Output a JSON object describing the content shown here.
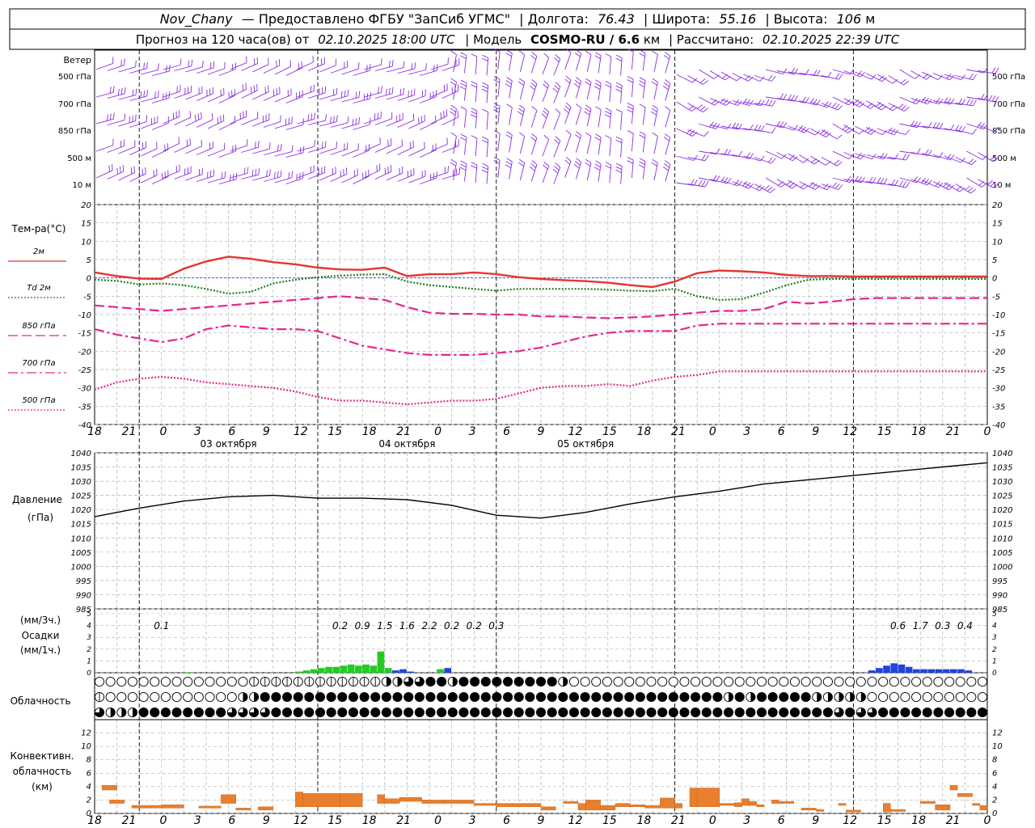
{
  "header": {
    "station": "Nov_Chany",
    "provider": "— Предоставлено ФГБУ \"ЗапСиб УГМС\"",
    "lon_label": "| Долгота:",
    "lon": "76.43",
    "lat_label": "| Широта:",
    "lat": "55.16",
    "alt_label": "| Высота:",
    "alt": "106",
    "alt_unit": "м",
    "forecast_label": "Прогноз на 120 часа(ов)  от",
    "forecast_start": "02.10.2025 18:00 UTC",
    "model_label": "| Модель",
    "model": "COSMO-RU / 6.6",
    "model_unit": "км",
    "computed_label": "| Рассчитано:",
    "computed": "02.10.2025 22:39 UTC"
  },
  "wind_panel": {
    "title": "Ветер",
    "levels": [
      "500 гПа",
      "700 гПа",
      "850 гПа",
      "500 м",
      "10  м"
    ],
    "levels_right": [
      "500 гПа",
      "700 гПа",
      "850 гПа",
      "500 м",
      "10  м"
    ],
    "color": "#8a2be2"
  },
  "time_axis": {
    "hour_labels": [
      "18",
      "21",
      "0",
      "3",
      "6",
      "9",
      "12",
      "15",
      "18",
      "21",
      "0",
      "3",
      "6",
      "9",
      "12",
      "15",
      "18",
      "21",
      "0",
      "3",
      "6",
      "9",
      "12",
      "15",
      "18",
      "21",
      "0"
    ],
    "day_labels": [
      "03 октября",
      "04 октября",
      "05 октября"
    ]
  },
  "chart_data": [
    {
      "type": "line",
      "name": "temperature",
      "title": "Тем-ра(°С)",
      "ylim": [
        -40,
        20
      ],
      "yticks": [
        "20",
        "15",
        "10",
        "5",
        "0",
        "-5",
        "-10",
        "-15",
        "-20",
        "-25",
        "-30",
        "-35",
        "-40"
      ],
      "x_hours": [
        0,
        3,
        6,
        9,
        12,
        15,
        18,
        21,
        24,
        27,
        30,
        33,
        36,
        39,
        42,
        45,
        48,
        51,
        54,
        57,
        60,
        63,
        66,
        69,
        72,
        75,
        78,
        81,
        84,
        87,
        90,
        93,
        96,
        99,
        102,
        105,
        108,
        111,
        114,
        117,
        120
      ],
      "series": [
        {
          "name": "2м",
          "color": "#e8342f",
          "style": "solid",
          "values": [
            1.5,
            0.5,
            -0.2,
            -0.3,
            2.5,
            4.5,
            5.8,
            5.2,
            4.3,
            3.7,
            2.8,
            2.3,
            2.2,
            2.8,
            0.5,
            1.0,
            1.0,
            1.5,
            1.0,
            0.2,
            -0.3,
            -0.6,
            -0.9,
            -1.3,
            -2.0,
            -2.5,
            -1.0,
            1.3,
            2.0,
            1.8,
            1.5,
            0.8,
            0.5,
            0.5,
            0.4,
            0.4,
            0.4,
            0.4,
            0.4,
            0.4,
            0.4
          ]
        },
        {
          "name": "Td  2м",
          "color": "#1d7f1d",
          "style": "dotted",
          "values": [
            -0.5,
            -0.8,
            -1.8,
            -1.5,
            -2.0,
            -3.0,
            -4.3,
            -3.8,
            -1.5,
            -0.5,
            0.2,
            0.6,
            0.9,
            1.0,
            -1.0,
            -2.0,
            -2.5,
            -3.0,
            -3.5,
            -3.0,
            -3.0,
            -3.0,
            -3.0,
            -3.2,
            -3.5,
            -3.6,
            -3.0,
            -5.0,
            -6.0,
            -5.8,
            -4.0,
            -2.0,
            -0.5,
            -0.3,
            -0.3,
            -0.3,
            -0.3,
            -0.3,
            -0.3,
            -0.3,
            -0.3
          ]
        },
        {
          "name": "850 гПа",
          "color": "#e6268a",
          "style": "dash",
          "values": [
            -7.5,
            -8.0,
            -8.5,
            -9.0,
            -8.5,
            -8.0,
            -7.5,
            -7.0,
            -6.5,
            -6.0,
            -5.5,
            -5.0,
            -5.5,
            -6.0,
            -8.0,
            -9.5,
            -9.8,
            -9.8,
            -10.0,
            -10.0,
            -10.5,
            -10.5,
            -10.8,
            -11.0,
            -10.8,
            -10.5,
            -10.0,
            -9.5,
            -9.0,
            -9.0,
            -8.5,
            -6.5,
            -7.0,
            -6.5,
            -5.8,
            -5.5,
            -5.5,
            -5.5,
            -5.5,
            -5.5,
            -5.5
          ]
        },
        {
          "name": "700 гПа",
          "color": "#e6268a",
          "style": "dashdot",
          "values": [
            -14.0,
            -15.5,
            -16.5,
            -17.5,
            -16.5,
            -14.0,
            -13.0,
            -13.5,
            -14.0,
            -14.0,
            -14.5,
            -16.5,
            -18.5,
            -19.5,
            -20.5,
            -21.0,
            -21.0,
            -21.0,
            -20.5,
            -20.0,
            -19.0,
            -17.5,
            -16.0,
            -15.0,
            -14.5,
            -14.5,
            -14.5,
            -13.0,
            -12.5,
            -12.5,
            -12.5,
            -12.5,
            -12.5,
            -12.5,
            -12.5,
            -12.5,
            -12.5,
            -12.5,
            -12.5,
            -12.5,
            -12.5
          ]
        },
        {
          "name": "500 гПа",
          "color": "#e6268a",
          "style": "dotted",
          "values": [
            -30.5,
            -28.5,
            -27.5,
            -27.0,
            -27.5,
            -28.5,
            -29.0,
            -29.5,
            -30.0,
            -31.0,
            -32.5,
            -33.5,
            -33.5,
            -34.0,
            -34.5,
            -34.0,
            -33.5,
            -33.5,
            -33.0,
            -31.5,
            -30.0,
            -29.5,
            -29.5,
            -29.0,
            -29.5,
            -28.0,
            -27.0,
            -26.5,
            -25.5,
            -25.5,
            -25.5,
            -25.5,
            -25.5,
            -25.5,
            -25.5,
            -25.5,
            -25.5,
            -25.5,
            -25.5,
            -25.5,
            -25.5
          ]
        }
      ]
    },
    {
      "type": "line",
      "name": "pressure",
      "title": "Давление",
      "ylabel": "(гПа)",
      "ylim": [
        985,
        1040
      ],
      "yticks": [
        "1040",
        "1035",
        "1030",
        "1025",
        "1020",
        "1015",
        "1010",
        "1005",
        "1000",
        "995",
        "990",
        "985"
      ],
      "x_hours": [
        0,
        6,
        12,
        18,
        24,
        30,
        36,
        42,
        48,
        54,
        60,
        66,
        72,
        78,
        84,
        90,
        96,
        102,
        108,
        114,
        120
      ],
      "series": [
        {
          "name": "",
          "color": "#000000",
          "values": [
            1017.5,
            1020.5,
            1023.0,
            1024.5,
            1025.0,
            1024.0,
            1024.0,
            1023.5,
            1021.5,
            1018.0,
            1017.0,
            1019.0,
            1022.0,
            1024.5,
            1026.5,
            1029.0,
            1030.5,
            1032.0,
            1033.5,
            1035.0,
            1036.5
          ]
        }
      ]
    },
    {
      "type": "bar",
      "name": "precipitation",
      "title": "Осадки",
      "ylabel_top": "(мм/3ч.)",
      "ylabel_bottom": "(мм/1ч.)",
      "ylim": [
        0,
        5
      ],
      "yticks": [
        "5",
        "4",
        "3",
        "2",
        "1",
        "0"
      ],
      "rain_color": "#22cc22",
      "snow_color": "#2244dd",
      "totals_3h": [
        {
          "hour": 9,
          "text": "0.1"
        },
        {
          "hour": 33,
          "text": "0.2"
        },
        {
          "hour": 36,
          "text": "0.9"
        },
        {
          "hour": 39,
          "text": "1.5"
        },
        {
          "hour": 42,
          "text": "1.6"
        },
        {
          "hour": 45,
          "text": "2.2"
        },
        {
          "hour": 48,
          "text": "0.2"
        },
        {
          "hour": 51,
          "text": "0.2"
        },
        {
          "hour": 54,
          "text": "0.3"
        },
        {
          "hour": 108,
          "text": "0.6"
        },
        {
          "hour": 111,
          "text": "1.7"
        },
        {
          "hour": 114,
          "text": "0.3"
        },
        {
          "hour": 117,
          "text": "0.4"
        }
      ],
      "hourly": [
        {
          "h": 12,
          "v": 0.05,
          "kind": "rain"
        },
        {
          "h": 27,
          "v": 0.1,
          "kind": "rain"
        },
        {
          "h": 28,
          "v": 0.2,
          "kind": "rain"
        },
        {
          "h": 29,
          "v": 0.3,
          "kind": "rain"
        },
        {
          "h": 30,
          "v": 0.4,
          "kind": "rain"
        },
        {
          "h": 31,
          "v": 0.5,
          "kind": "rain"
        },
        {
          "h": 32,
          "v": 0.5,
          "kind": "rain"
        },
        {
          "h": 33,
          "v": 0.6,
          "kind": "rain"
        },
        {
          "h": 34,
          "v": 0.7,
          "kind": "rain"
        },
        {
          "h": 35,
          "v": 0.6,
          "kind": "rain"
        },
        {
          "h": 36,
          "v": 0.7,
          "kind": "rain"
        },
        {
          "h": 37,
          "v": 0.6,
          "kind": "rain"
        },
        {
          "h": 38,
          "v": 1.8,
          "kind": "rain"
        },
        {
          "h": 39,
          "v": 0.4,
          "kind": "rain"
        },
        {
          "h": 40,
          "v": 0.2,
          "kind": "snow"
        },
        {
          "h": 41,
          "v": 0.3,
          "kind": "snow"
        },
        {
          "h": 42,
          "v": 0.1,
          "kind": "snow"
        },
        {
          "h": 46,
          "v": 0.3,
          "kind": "rain"
        },
        {
          "h": 47,
          "v": 0.4,
          "kind": "snow"
        },
        {
          "h": 104,
          "v": 0.2,
          "kind": "snow"
        },
        {
          "h": 105,
          "v": 0.4,
          "kind": "snow"
        },
        {
          "h": 106,
          "v": 0.6,
          "kind": "snow"
        },
        {
          "h": 107,
          "v": 0.8,
          "kind": "snow"
        },
        {
          "h": 108,
          "v": 0.7,
          "kind": "snow"
        },
        {
          "h": 109,
          "v": 0.5,
          "kind": "snow"
        },
        {
          "h": 110,
          "v": 0.3,
          "kind": "snow"
        },
        {
          "h": 111,
          "v": 0.3,
          "kind": "snow"
        },
        {
          "h": 112,
          "v": 0.3,
          "kind": "snow"
        },
        {
          "h": 113,
          "v": 0.3,
          "kind": "snow"
        },
        {
          "h": 114,
          "v": 0.3,
          "kind": "snow"
        },
        {
          "h": 115,
          "v": 0.3,
          "kind": "snow"
        },
        {
          "h": 116,
          "v": 0.3,
          "kind": "snow"
        },
        {
          "h": 117,
          "v": 0.2,
          "kind": "snow"
        }
      ]
    },
    {
      "type": "table",
      "name": "cloudiness",
      "title": "Облачность",
      "rows": [
        "0000000000000011111111111122334424444444442000000000000000000000000000000000000000000000000000000000000000224422444444444444444444",
        "1000000000000224444444444444444444444444444444444444444442424444422222000000000000000000000000000000000000000011244444444444444444",
        "3222444444443333444444444444444444444444444444444444444444444444444343344444444444444444444444444444444444444344444444444444444444"
      ]
    },
    {
      "type": "bar",
      "name": "convective_clouds",
      "title": "Конвективн.",
      "ylabel_1": "облачность",
      "ylabel_2": "(км)",
      "ylim": [
        0,
        14
      ],
      "yticks": [
        "12",
        "10",
        "8",
        "6",
        "4",
        "2",
        "0"
      ],
      "color": "#e87f2e",
      "bars": [
        {
          "h0": 1,
          "h1": 3,
          "bottom": 3.5,
          "top": 4.2
        },
        {
          "h0": 2,
          "h1": 4,
          "bottom": 1.5,
          "top": 2.0
        },
        {
          "h0": 5,
          "h1": 9,
          "bottom": 0.8,
          "top": 1.2
        },
        {
          "h0": 9,
          "h1": 12,
          "bottom": 0.8,
          "top": 1.3
        },
        {
          "h0": 14,
          "h1": 17,
          "bottom": 0.8,
          "top": 1.1
        },
        {
          "h0": 17,
          "h1": 19,
          "bottom": 1.5,
          "top": 2.8
        },
        {
          "h0": 19,
          "h1": 21,
          "bottom": 0.5,
          "top": 0.8
        },
        {
          "h0": 22,
          "h1": 24,
          "bottom": 0.5,
          "top": 1.0
        },
        {
          "h0": 27,
          "h1": 28,
          "bottom": 1.0,
          "top": 3.2
        },
        {
          "h0": 28,
          "h1": 33,
          "bottom": 1.0,
          "top": 3.0
        },
        {
          "h0": 33,
          "h1": 36,
          "bottom": 1.0,
          "top": 3.0
        },
        {
          "h0": 38,
          "h1": 39,
          "bottom": 1.5,
          "top": 2.8
        },
        {
          "h0": 39,
          "h1": 41,
          "bottom": 1.5,
          "top": 2.2
        },
        {
          "h0": 41,
          "h1": 44,
          "bottom": 1.8,
          "top": 2.4
        },
        {
          "h0": 44,
          "h1": 47,
          "bottom": 1.5,
          "top": 2.0
        },
        {
          "h0": 47,
          "h1": 51,
          "bottom": 1.5,
          "top": 2.0
        },
        {
          "h0": 51,
          "h1": 54,
          "bottom": 1.2,
          "top": 1.5
        },
        {
          "h0": 54,
          "h1": 60,
          "bottom": 1.0,
          "top": 1.5
        },
        {
          "h0": 60,
          "h1": 62,
          "bottom": 0.5,
          "top": 1.0
        },
        {
          "h0": 63,
          "h1": 65,
          "bottom": 1.5,
          "top": 1.8
        },
        {
          "h0": 65,
          "h1": 66,
          "bottom": 0.5,
          "top": 1.5
        },
        {
          "h0": 66,
          "h1": 68,
          "bottom": 0.5,
          "top": 2.0
        },
        {
          "h0": 68,
          "h1": 70,
          "bottom": 0.5,
          "top": 1.2
        },
        {
          "h0": 70,
          "h1": 72,
          "bottom": 1.0,
          "top": 1.5
        },
        {
          "h0": 72,
          "h1": 74,
          "bottom": 1.0,
          "top": 1.3
        },
        {
          "h0": 74,
          "h1": 76,
          "bottom": 0.8,
          "top": 1.2
        },
        {
          "h0": 76,
          "h1": 78,
          "bottom": 0.8,
          "top": 2.3
        },
        {
          "h0": 78,
          "h1": 79,
          "bottom": 0.8,
          "top": 1.5
        },
        {
          "h0": 80,
          "h1": 81,
          "bottom": 1.0,
          "top": 3.8
        },
        {
          "h0": 81,
          "h1": 84,
          "bottom": 1.0,
          "top": 3.8
        },
        {
          "h0": 84,
          "h1": 86,
          "bottom": 1.2,
          "top": 1.5
        },
        {
          "h0": 86,
          "h1": 87,
          "bottom": 1.0,
          "top": 1.6
        },
        {
          "h0": 87,
          "h1": 88,
          "bottom": 1.2,
          "top": 2.2
        },
        {
          "h0": 88,
          "h1": 89,
          "bottom": 1.2,
          "top": 1.8
        },
        {
          "h0": 89,
          "h1": 90,
          "bottom": 1.0,
          "top": 1.3
        },
        {
          "h0": 91,
          "h1": 92,
          "bottom": 1.5,
          "top": 2.0
        },
        {
          "h0": 92,
          "h1": 94,
          "bottom": 1.5,
          "top": 1.8
        },
        {
          "h0": 95,
          "h1": 97,
          "bottom": 0.5,
          "top": 0.8
        },
        {
          "h0": 97,
          "h1": 98,
          "bottom": 0.3,
          "top": 0.6
        },
        {
          "h0": 100,
          "h1": 101,
          "bottom": 1.2,
          "top": 1.5
        },
        {
          "h0": 101,
          "h1": 103,
          "bottom": 0.2,
          "top": 0.5
        },
        {
          "h0": 106,
          "h1": 107,
          "bottom": 0.2,
          "top": 1.5
        },
        {
          "h0": 107,
          "h1": 109,
          "bottom": 0.3,
          "top": 0.6
        },
        {
          "h0": 111,
          "h1": 113,
          "bottom": 1.5,
          "top": 1.8
        },
        {
          "h0": 113,
          "h1": 115,
          "bottom": 0.5,
          "top": 1.3
        },
        {
          "h0": 115,
          "h1": 116,
          "bottom": 3.5,
          "top": 4.2
        },
        {
          "h0": 116,
          "h1": 118,
          "bottom": 2.5,
          "top": 3.0
        },
        {
          "h0": 118,
          "h1": 119,
          "bottom": 1.2,
          "top": 1.5
        },
        {
          "h0": 119,
          "h1": 120,
          "bottom": 0.5,
          "top": 1.2
        }
      ]
    }
  ]
}
